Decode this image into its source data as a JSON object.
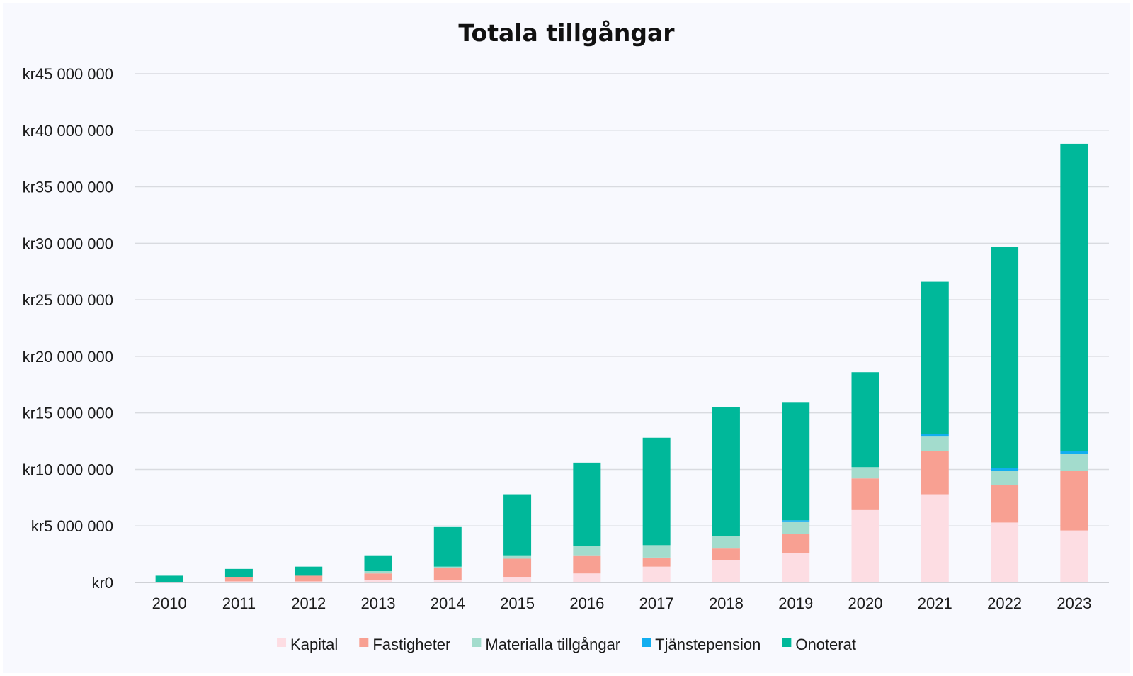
{
  "chart_data": {
    "type": "bar",
    "stacked": true,
    "title": "Totala tillgångar",
    "xlabel": "",
    "ylabel": "",
    "ylim": [
      0,
      45000000
    ],
    "yticks": [
      0,
      5000000,
      10000000,
      15000000,
      20000000,
      25000000,
      30000000,
      35000000,
      40000000,
      45000000
    ],
    "ytick_labels": [
      "kr0",
      "kr5 000 000",
      "kr10 000 000",
      "kr15 000 000",
      "kr20 000 000",
      "kr25 000 000",
      "kr30 000 000",
      "kr35 000 000",
      "kr40 000 000",
      "kr45 000 000"
    ],
    "grid": true,
    "legend_position": "bottom",
    "categories": [
      "2010",
      "2011",
      "2012",
      "2013",
      "2014",
      "2015",
      "2016",
      "2017",
      "2018",
      "2019",
      "2020",
      "2021",
      "2022",
      "2023"
    ],
    "series": [
      {
        "name": "Kapital",
        "color": "#fddde3",
        "values": [
          0,
          100000,
          100000,
          200000,
          200000,
          500000,
          800000,
          1400000,
          2000000,
          2600000,
          6400000,
          7800000,
          5300000,
          4600000
        ]
      },
      {
        "name": "Fastigheter",
        "color": "#f8a092",
        "values": [
          0,
          400000,
          500000,
          600000,
          1100000,
          1600000,
          1600000,
          800000,
          1000000,
          1700000,
          2800000,
          3800000,
          3300000,
          5300000
        ]
      },
      {
        "name": "Materialla tillgångar",
        "color": "#a3dccd",
        "values": [
          0,
          0,
          0,
          200000,
          100000,
          300000,
          800000,
          1100000,
          1100000,
          1100000,
          1000000,
          1300000,
          1300000,
          1500000
        ]
      },
      {
        "name": "Tjänstepension",
        "color": "#12aef0",
        "values": [
          0,
          0,
          0,
          0,
          0,
          0,
          0,
          0,
          0,
          100000,
          0,
          200000,
          200000,
          200000
        ]
      },
      {
        "name": "Onoterat",
        "color": "#00b89a",
        "values": [
          600000,
          700000,
          800000,
          1400000,
          3500000,
          5400000,
          7400000,
          9500000,
          11400000,
          10400000,
          8400000,
          13500000,
          19600000,
          27200000
        ]
      }
    ]
  }
}
